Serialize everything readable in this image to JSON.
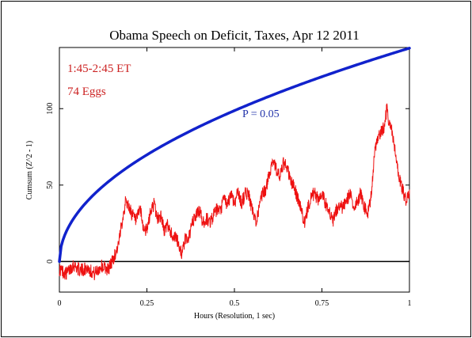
{
  "chart_data": {
    "type": "line",
    "title": "Obama Speech on Deficit, Taxes, Apr 12 2011",
    "xlabel": "Hours (Resolution, 1 sec)",
    "ylabel": "Cumsum (Z^2 - 1)",
    "xlim": [
      0,
      1
    ],
    "ylim": [
      -20,
      140
    ],
    "x_ticks": [
      {
        "value": 0,
        "label": "0"
      },
      {
        "value": 0.25,
        "label": "0.25"
      },
      {
        "value": 0.5,
        "label": "0.5"
      },
      {
        "value": 0.75,
        "label": "0.75"
      },
      {
        "value": 1,
        "label": "1"
      }
    ],
    "y_ticks": [
      {
        "value": 0,
        "label": "0"
      },
      {
        "value": 50,
        "label": "50"
      },
      {
        "value": 100,
        "label": "100"
      }
    ],
    "annotations": {
      "time_range": "1:45-2:45 ET",
      "eggs": "74 Eggs",
      "p_label": "P = 0.05"
    },
    "colors": {
      "cumsum": "#ee1111",
      "envelope": "#1122cc",
      "baseline": "#000000",
      "text_red": "#cc2222",
      "text_blue": "#2233aa"
    },
    "series": [
      {
        "role": "cumsum",
        "x": [
          0,
          0.02,
          0.04,
          0.06,
          0.08,
          0.1,
          0.12,
          0.14,
          0.15,
          0.16,
          0.17,
          0.18,
          0.19,
          0.2,
          0.21,
          0.22,
          0.23,
          0.24,
          0.25,
          0.26,
          0.27,
          0.28,
          0.29,
          0.3,
          0.31,
          0.32,
          0.33,
          0.34,
          0.35,
          0.36,
          0.37,
          0.38,
          0.39,
          0.4,
          0.41,
          0.42,
          0.43,
          0.44,
          0.45,
          0.46,
          0.47,
          0.48,
          0.49,
          0.5,
          0.51,
          0.52,
          0.53,
          0.54,
          0.55,
          0.56,
          0.57,
          0.58,
          0.59,
          0.6,
          0.61,
          0.62,
          0.63,
          0.64,
          0.65,
          0.66,
          0.67,
          0.68,
          0.69,
          0.7,
          0.71,
          0.72,
          0.73,
          0.74,
          0.75,
          0.76,
          0.77,
          0.78,
          0.79,
          0.8,
          0.81,
          0.82,
          0.83,
          0.84,
          0.85,
          0.86,
          0.87,
          0.88,
          0.89,
          0.9,
          0.91,
          0.92,
          0.93,
          0.935,
          0.94,
          0.95,
          0.96,
          0.97,
          0.98,
          0.99,
          1.0
        ],
        "y": [
          -5,
          -8,
          -2,
          -6,
          -4,
          -8,
          -3,
          -5,
          0,
          5,
          12,
          28,
          40,
          35,
          30,
          26,
          35,
          22,
          20,
          32,
          38,
          28,
          30,
          20,
          24,
          18,
          16,
          12,
          5,
          15,
          16,
          25,
          30,
          34,
          25,
          28,
          26,
          30,
          34,
          32,
          42,
          36,
          45,
          38,
          46,
          38,
          44,
          45,
          34,
          26,
          34,
          44,
          47,
          58,
          67,
          60,
          55,
          64,
          62,
          53,
          49,
          42,
          35,
          25,
          35,
          44,
          44,
          40,
          46,
          38,
          35,
          25,
          33,
          36,
          35,
          40,
          44,
          36,
          38,
          45,
          37,
          30,
          42,
          70,
          80,
          85,
          90,
          100,
          92,
          85,
          70,
          55,
          48,
          40,
          45
        ]
      },
      {
        "role": "envelope",
        "label": "P = 0.05"
      }
    ]
  }
}
